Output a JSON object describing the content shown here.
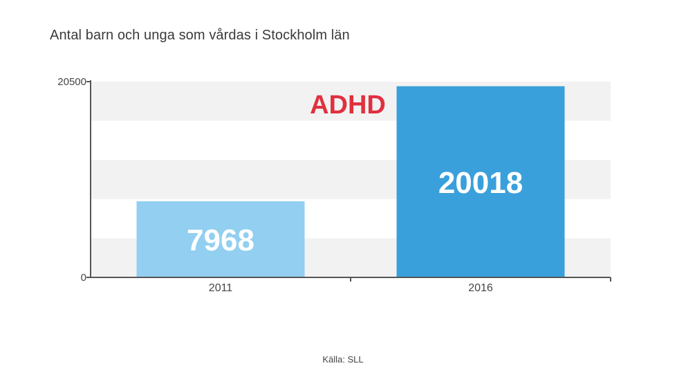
{
  "chart_data": {
    "type": "bar",
    "title": "Antal barn och unga som vårdas i Stockholm län",
    "annotation": "ADHD",
    "categories": [
      "2011",
      "2016"
    ],
    "values": [
      7968,
      20018
    ],
    "ylim": [
      0,
      20500
    ],
    "y_ticks": [
      "0",
      "20500"
    ],
    "bar_colors": [
      "#92cff0",
      "#3aa0db"
    ],
    "annotation_color": "#e0303f",
    "grid_band_color": "#f2f2f2",
    "axis_color": "#555555",
    "source": "Källa: SLL"
  }
}
